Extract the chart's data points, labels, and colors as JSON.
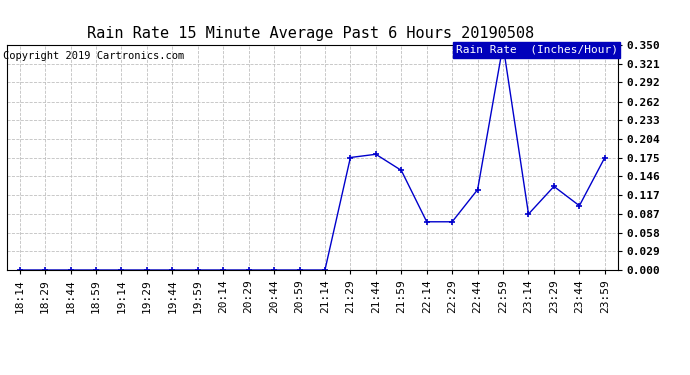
{
  "title": "Rain Rate 15 Minute Average Past 6 Hours 20190508",
  "copyright": "Copyright 2019 Cartronics.com",
  "legend_label": "Rain Rate  (Inches/Hour)",
  "x_labels": [
    "18:14",
    "18:29",
    "18:44",
    "18:59",
    "19:14",
    "19:29",
    "19:44",
    "19:59",
    "20:14",
    "20:29",
    "20:44",
    "20:59",
    "21:14",
    "21:29",
    "21:44",
    "21:59",
    "22:14",
    "22:29",
    "22:44",
    "22:59",
    "23:14",
    "23:29",
    "23:44",
    "23:59"
  ],
  "y_values": [
    0.0,
    0.0,
    0.0,
    0.0,
    0.0,
    0.0,
    0.0,
    0.0,
    0.0,
    0.0,
    0.0,
    0.0,
    0.0,
    0.175,
    0.18,
    0.155,
    0.075,
    0.075,
    0.125,
    0.35,
    0.087,
    0.13,
    0.1,
    0.175
  ],
  "y_ticks": [
    0.0,
    0.029,
    0.058,
    0.087,
    0.117,
    0.146,
    0.175,
    0.204,
    0.233,
    0.262,
    0.292,
    0.321,
    0.35
  ],
  "line_color": "#0000cc",
  "marker_color": "#0000cc",
  "background_color": "#ffffff",
  "grid_color": "#c0c0c0",
  "legend_bg": "#0000bb",
  "legend_fg": "#ffffff",
  "title_fontsize": 11,
  "copyright_fontsize": 7.5,
  "tick_fontsize": 8,
  "legend_fontsize": 8,
  "ylim": [
    0.0,
    0.35
  ]
}
